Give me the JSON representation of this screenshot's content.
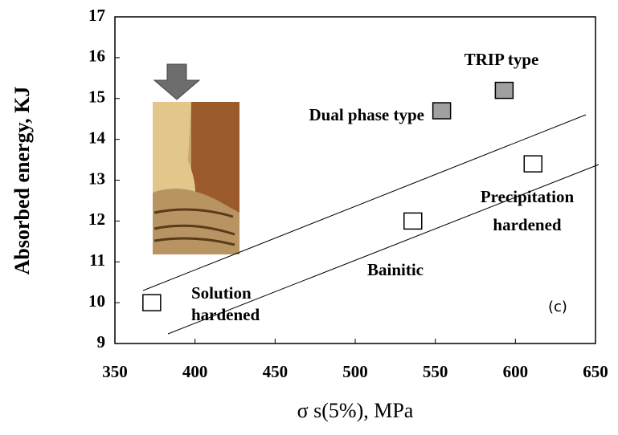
{
  "chart_data": {
    "type": "scatter",
    "y_label": "Absorbed energy, KJ",
    "x_label": "σ s(5%), MPa",
    "xlim": [
      350,
      650
    ],
    "xticks": [
      350,
      400,
      450,
      500,
      550,
      600,
      650
    ],
    "ylim": [
      9,
      17
    ],
    "yticks": [
      9,
      10,
      11,
      12,
      13,
      14,
      15,
      16,
      17
    ],
    "series": [
      {
        "color": "#a0a0a0",
        "x": [
          554,
          593
        ],
        "values": [
          14.7,
          15.2
        ]
      },
      {
        "color": "#ffffff",
        "x": [
          373,
          536,
          611
        ],
        "values": [
          10.0,
          12.0,
          13.4
        ]
      }
    ],
    "annotations": [
      "TRIP type",
      "Dual phase type",
      "Precipitation",
      "hardened",
      "Bainitic",
      "Solution",
      "hardened",
      "(c)"
    ]
  }
}
